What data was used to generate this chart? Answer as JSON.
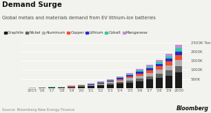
{
  "title": "Demand Surge",
  "subtitle": "Global metals and materials demand from EV lithium-ion batteries",
  "source": "Source: Bloomberg New Energy Finance",
  "year_labels": [
    "2015",
    "'16",
    "'17",
    "'18",
    "'19",
    "'20",
    "'21",
    "'22",
    "'23",
    "'24",
    "'25",
    "'26",
    "'27",
    "'28",
    "'29",
    "2030"
  ],
  "series": {
    "Graphite": [
      10,
      15,
      22,
      35,
      50,
      70,
      95,
      135,
      185,
      245,
      315,
      390,
      475,
      575,
      695,
      870
    ],
    "Nickel": [
      3,
      5,
      8,
      12,
      18,
      26,
      36,
      50,
      68,
      90,
      115,
      145,
      175,
      215,
      265,
      330
    ],
    "Aluminum": [
      4,
      6,
      9,
      14,
      20,
      28,
      38,
      52,
      70,
      92,
      120,
      150,
      182,
      222,
      272,
      338
    ],
    "Copper": [
      3,
      5,
      7,
      10,
      15,
      22,
      30,
      42,
      57,
      75,
      98,
      123,
      150,
      185,
      228,
      285
    ],
    "Lithium": [
      2,
      3,
      5,
      7,
      10,
      15,
      20,
      28,
      38,
      50,
      65,
      82,
      100,
      124,
      152,
      190
    ],
    "Cobalt": [
      2,
      3,
      4,
      6,
      9,
      13,
      18,
      24,
      33,
      44,
      57,
      72,
      88,
      108,
      134,
      168
    ],
    "Manganese": [
      2,
      3,
      4,
      7,
      10,
      14,
      19,
      26,
      35,
      47,
      62,
      78,
      95,
      117,
      143,
      180
    ]
  },
  "colors": {
    "Graphite": "#1a1a1a",
    "Nickel": "#636363",
    "Aluminum": "#b2b2b2",
    "Copper": "#f05030",
    "Lithium": "#2828cc",
    "Cobalt": "#30c8a8",
    "Manganese": "#c090d8"
  },
  "ylim": [
    0,
    2600
  ],
  "yticks": [
    500,
    1000,
    1500,
    2000,
    2500
  ],
  "ytick_labels": [
    "500K",
    "1000K",
    "1500K",
    "2000K",
    "2500K Tons"
  ],
  "bg_color": "#f2f2ee"
}
